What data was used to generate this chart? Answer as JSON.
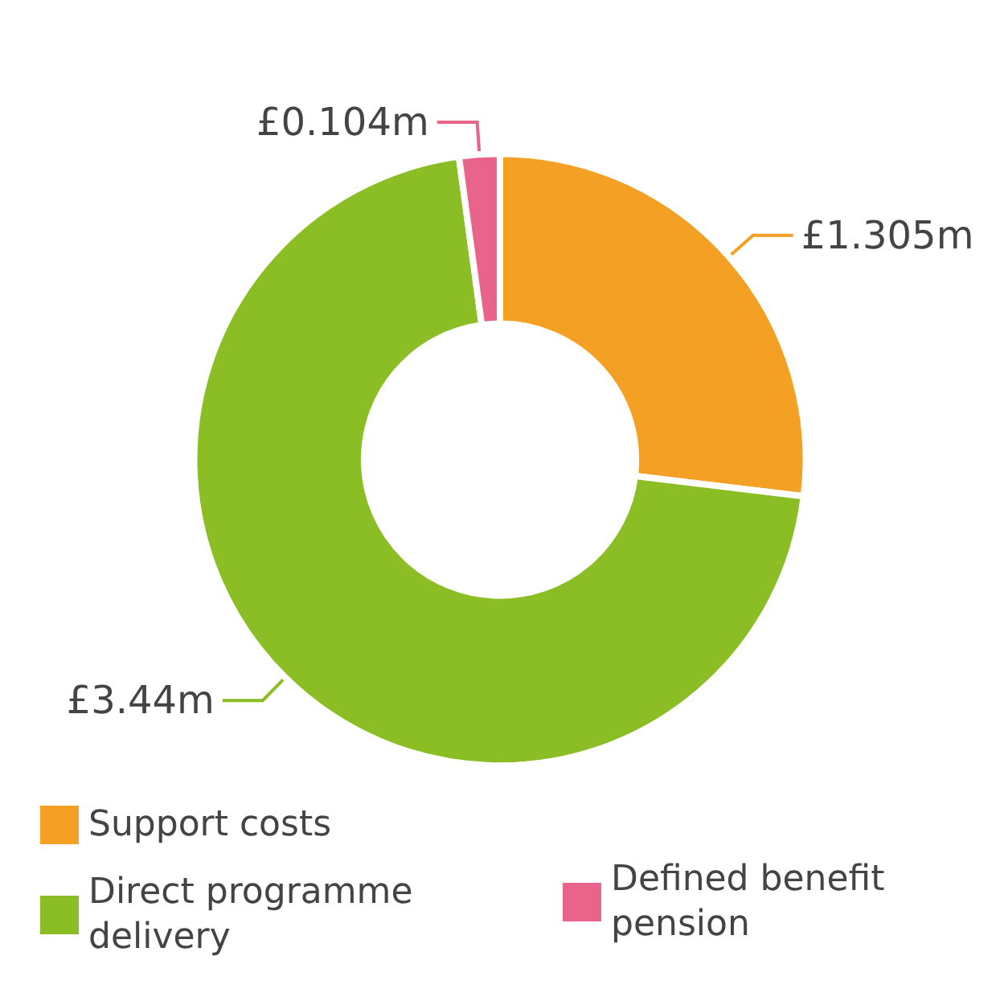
{
  "chart_data": {
    "type": "donut",
    "categories": [
      "Support costs",
      "Direct programme delivery",
      "Defined benefit pension"
    ],
    "values": [
      1.305,
      3.44,
      0.104
    ],
    "colors": [
      "#f4a024",
      "#8bbd24",
      "#e8648a"
    ],
    "value_labels": [
      "£1.305m",
      "£3.44m",
      "£0.104m"
    ],
    "legend": "bottom"
  }
}
